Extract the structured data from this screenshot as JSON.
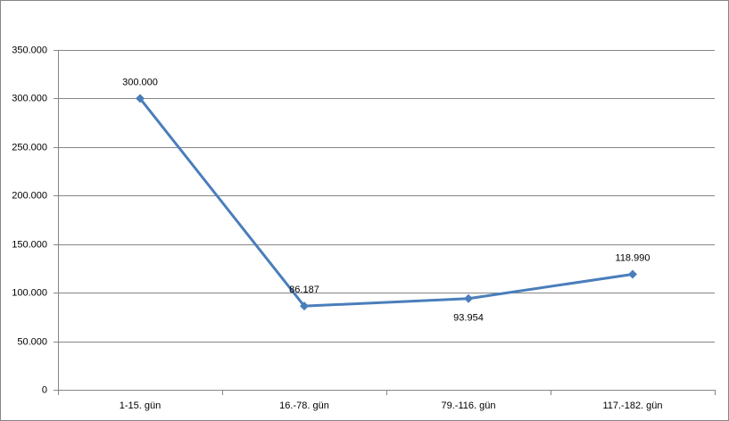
{
  "chart_data": {
    "type": "line",
    "categories": [
      "1-15. gün",
      "16.-78. gün",
      "79.-116. gün",
      "117.-182. gün"
    ],
    "values": [
      300000,
      86187,
      93954,
      118990
    ],
    "value_labels": [
      "300.000",
      "86.187",
      "93.954",
      "118.990"
    ],
    "color": "#4a7ebb",
    "ylim": [
      0,
      350000
    ],
    "yticks": [
      0,
      {
        "value": 50000,
        "label": "50.000"
      },
      {
        "value": 100000,
        "label": "100.000"
      },
      {
        "value": 150000,
        "label": "150.000"
      },
      {
        "value": 200000,
        "label": "200.000"
      },
      {
        "value": 250000,
        "label": "250.000"
      },
      {
        "value": 300000,
        "label": "300.000"
      },
      {
        "value": 350000,
        "label": "350.000"
      }
    ],
    "grid": true
  }
}
